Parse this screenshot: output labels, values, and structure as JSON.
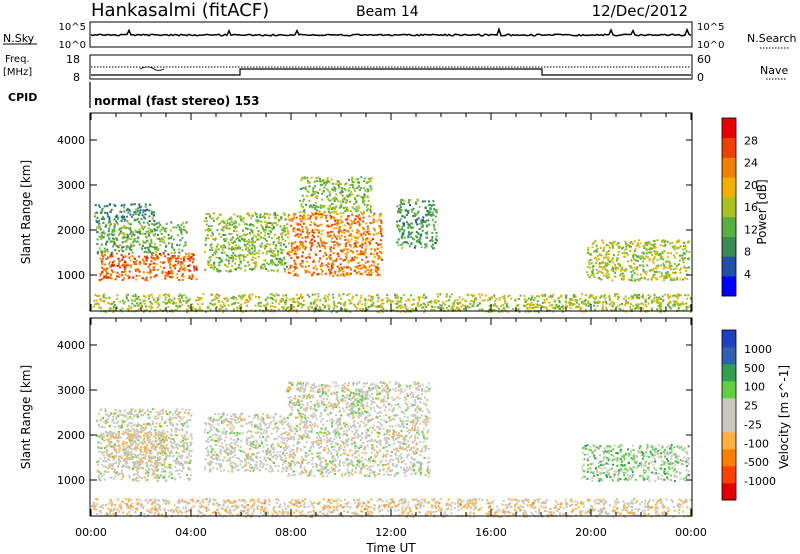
{
  "header": {
    "station": "Hankasalmi (fitACF)",
    "beam": "Beam 14",
    "date": "12/Dec/2012"
  },
  "top_panels": {
    "nsky_label": "N.Sky",
    "nsky_tick_top": "10^5",
    "nsky_tick_bottom": "10^0",
    "nsearch_label": "N.Search",
    "nsearch_tick_top": "10^5",
    "nsearch_tick_bottom": "10^0",
    "freq_label_1": "Freq.",
    "freq_label_2": "[MHz]",
    "freq_tick_top": "18",
    "freq_tick_bottom": "8",
    "nave_label": "Nave",
    "nave_tick_top": "60",
    "nave_tick_bottom": "0",
    "cpid_label": "CPID",
    "cpid_text": "normal (fast stereo) 153"
  },
  "colors": {
    "power_scale": [
      "#0000ff",
      "#1f4fa8",
      "#3a8a55",
      "#55b040",
      "#a8c020",
      "#f0b000",
      "#f08000",
      "#f04000",
      "#e80000"
    ],
    "velocity_scale": [
      "#e00000",
      "#ff4000",
      "#ff8000",
      "#ffb040",
      "#c8c8c0",
      "#c8c8c0",
      "#60d040",
      "#30a050",
      "#3060b0",
      "#2040c0"
    ],
    "ground_scatter": "#c0c0b8"
  },
  "chart_data": [
    {
      "type": "heatmap",
      "name": "power",
      "x": [
        "00:00",
        "04:00",
        "08:00",
        "12:00",
        "16:00",
        "20:00",
        "00:00"
      ],
      "ylabel": "Slant Range [km]",
      "yticks": [
        "4000",
        "3000",
        "2000",
        "1000"
      ],
      "ylim": [
        200,
        4600
      ],
      "colorbar_label": "Power [dB]",
      "colorbar_ticks": [
        "28",
        "24",
        "20",
        "16",
        "12",
        "8",
        "4"
      ],
      "colorbar_range": [
        0,
        32
      ],
      "regions": [
        {
          "t": [
            0.3,
            4.2
          ],
          "r": [
            900,
            1500
          ],
          "level": 26
        },
        {
          "t": [
            0.2,
            3.8
          ],
          "r": [
            1500,
            2200
          ],
          "level": 12
        },
        {
          "t": [
            0.1,
            2.5
          ],
          "r": [
            2200,
            2600
          ],
          "level": 8
        },
        {
          "t": [
            4.5,
            7.8
          ],
          "r": [
            1100,
            2400
          ],
          "level": 14
        },
        {
          "t": [
            7.8,
            11.6
          ],
          "r": [
            1000,
            2400
          ],
          "level": 24
        },
        {
          "t": [
            8.3,
            11.2
          ],
          "r": [
            2400,
            3200
          ],
          "level": 14
        },
        {
          "t": [
            12.2,
            13.8
          ],
          "r": [
            1600,
            2700
          ],
          "level": 10
        },
        {
          "t": [
            19.8,
            23.9
          ],
          "r": [
            900,
            1800
          ],
          "level": 16
        },
        {
          "t": [
            0.0,
            24.0
          ],
          "r": [
            200,
            600
          ],
          "level": 16
        }
      ]
    },
    {
      "type": "heatmap",
      "name": "velocity",
      "x": [
        "00:00",
        "04:00",
        "08:00",
        "12:00",
        "16:00",
        "20:00",
        "00:00"
      ],
      "xlabel": "Time UT",
      "ylabel": "Slant Range [km]",
      "yticks": [
        "4000",
        "3000",
        "2000",
        "1000"
      ],
      "ylim": [
        200,
        4600
      ],
      "colorbar_label": "Velocity [m s^-1]",
      "colorbar_ticks": [
        "1000",
        "500",
        "100",
        "25",
        "-25",
        "-100",
        "-500",
        "-1000"
      ],
      "colorbar_range": [
        -1200,
        1200
      ],
      "regions": [
        {
          "t": [
            0.2,
            4.0
          ],
          "r": [
            1000,
            2600
          ],
          "level": 0
        },
        {
          "t": [
            0.5,
            3.0
          ],
          "r": [
            1300,
            2100
          ],
          "level": -150
        },
        {
          "t": [
            4.5,
            7.8
          ],
          "r": [
            1200,
            2500
          ],
          "level": 0
        },
        {
          "t": [
            7.8,
            13.5
          ],
          "r": [
            1100,
            3200
          ],
          "level": 0
        },
        {
          "t": [
            10.3,
            11.0
          ],
          "r": [
            2500,
            3000
          ],
          "level": 150
        },
        {
          "t": [
            19.6,
            23.9
          ],
          "r": [
            1000,
            1800
          ],
          "level": 300
        },
        {
          "t": [
            0.0,
            24.0
          ],
          "r": [
            200,
            600
          ],
          "level": -200
        }
      ]
    }
  ]
}
